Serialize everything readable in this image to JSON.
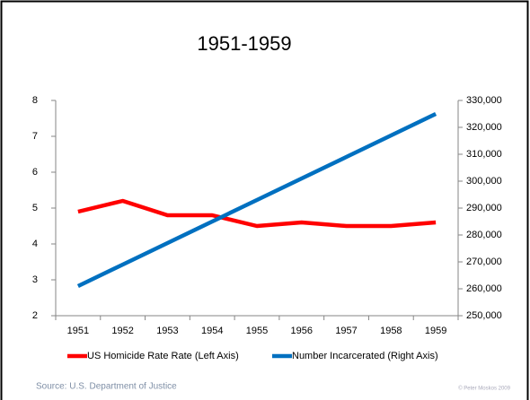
{
  "chart_data": {
    "type": "line",
    "title": "1951-1959",
    "categories": [
      "1951",
      "1952",
      "1953",
      "1954",
      "1955",
      "1956",
      "1957",
      "1958",
      "1959"
    ],
    "series": [
      {
        "name": "US Homicide Rate Rate (Left Axis)",
        "color": "#ff0000",
        "values": [
          4.9,
          5.2,
          4.8,
          4.8,
          4.5,
          4.6,
          4.5,
          4.5,
          4.6
        ]
      },
      {
        "name": "Number Incarcerated (Right Axis)",
        "color": "#0070c0",
        "axis": "y2",
        "values": [
          261000,
          269000,
          277000,
          285000,
          293000,
          301000,
          309000,
          317000,
          325000
        ]
      }
    ],
    "ylim": [
      2,
      8
    ],
    "yticks": [
      2,
      3,
      4,
      5,
      6,
      7,
      8
    ],
    "y2lim": [
      250000,
      330000
    ],
    "y2ticks": [
      {
        "value": 250000,
        "label": "250,000"
      },
      {
        "value": 260000,
        "label": "260,000"
      },
      {
        "value": 270000,
        "label": "270,000"
      },
      {
        "value": 280000,
        "label": "280,000"
      },
      {
        "value": 290000,
        "label": "290,000"
      },
      {
        "value": 300000,
        "label": "300,000"
      },
      {
        "value": 310000,
        "label": "310,000"
      },
      {
        "value": 320000,
        "label": "320,000"
      },
      {
        "value": 330000,
        "label": "330,000"
      }
    ],
    "legend": "bottom",
    "source": "Source: U.S. Department of Justice",
    "credit": "© Peter Moskos 2009"
  }
}
